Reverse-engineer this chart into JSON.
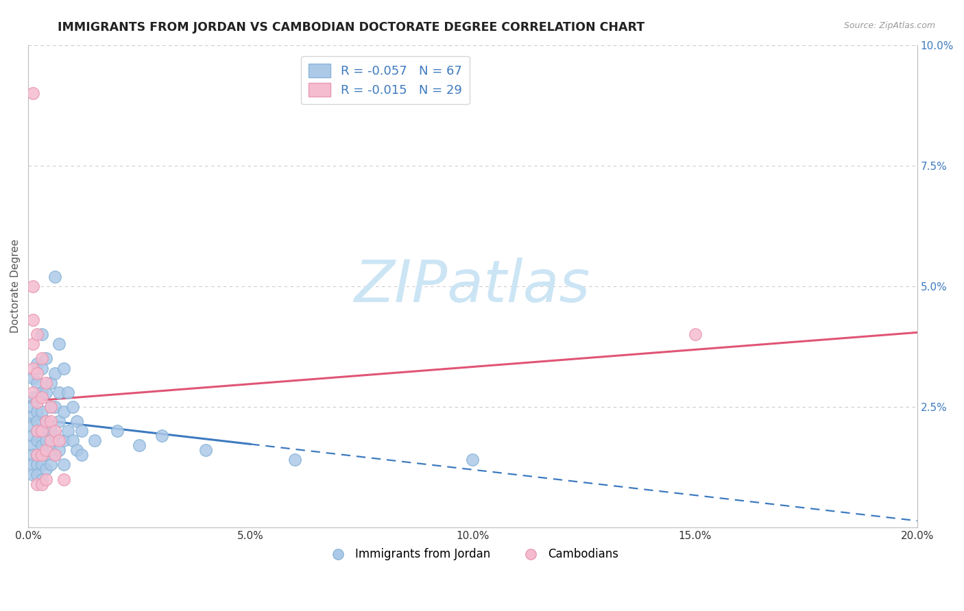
{
  "title": "IMMIGRANTS FROM JORDAN VS CAMBODIAN DOCTORATE DEGREE CORRELATION CHART",
  "source_text": "Source: ZipAtlas.com",
  "ylabel": "Doctorate Degree",
  "xlim": [
    0.0,
    0.2
  ],
  "ylim": [
    0.0,
    0.1
  ],
  "xticks": [
    0.0,
    0.05,
    0.1,
    0.15,
    0.2
  ],
  "xtick_labels": [
    "0.0%",
    "5.0%",
    "10.0%",
    "15.0%",
    "20.0%"
  ],
  "yticks_right": [
    0.025,
    0.05,
    0.075,
    0.1
  ],
  "ytick_labels_right": [
    "2.5%",
    "5.0%",
    "7.5%",
    "10.0%"
  ],
  "blue_R": -0.057,
  "blue_N": 67,
  "pink_R": -0.015,
  "pink_N": 29,
  "blue_color": "#adc9e8",
  "pink_color": "#f5bcd0",
  "blue_edge": "#89b4d8",
  "pink_edge": "#e899b0",
  "trend_blue_color": "#3d7abf",
  "trend_pink_color": "#e05575",
  "background_color": "#ffffff",
  "grid_color": "#cccccc",
  "title_fontsize": 12.5,
  "watermark_text": "ZIPatlas",
  "watermark_color": "#cce5f5",
  "legend_label_blue": "Immigrants from Jordan",
  "legend_label_pink": "Cambodians",
  "blue_scatter": [
    [
      0.001,
      0.031
    ],
    [
      0.001,
      0.027
    ],
    [
      0.001,
      0.025
    ],
    [
      0.001,
      0.023
    ],
    [
      0.001,
      0.021
    ],
    [
      0.001,
      0.019
    ],
    [
      0.001,
      0.017
    ],
    [
      0.001,
      0.015
    ],
    [
      0.001,
      0.013
    ],
    [
      0.001,
      0.011
    ],
    [
      0.002,
      0.034
    ],
    [
      0.002,
      0.03
    ],
    [
      0.002,
      0.027
    ],
    [
      0.002,
      0.024
    ],
    [
      0.002,
      0.022
    ],
    [
      0.002,
      0.02
    ],
    [
      0.002,
      0.018
    ],
    [
      0.002,
      0.015
    ],
    [
      0.002,
      0.013
    ],
    [
      0.002,
      0.011
    ],
    [
      0.003,
      0.04
    ],
    [
      0.003,
      0.033
    ],
    [
      0.003,
      0.028
    ],
    [
      0.003,
      0.024
    ],
    [
      0.003,
      0.02
    ],
    [
      0.003,
      0.017
    ],
    [
      0.003,
      0.013
    ],
    [
      0.003,
      0.01
    ],
    [
      0.004,
      0.035
    ],
    [
      0.004,
      0.028
    ],
    [
      0.004,
      0.022
    ],
    [
      0.004,
      0.018
    ],
    [
      0.004,
      0.015
    ],
    [
      0.004,
      0.012
    ],
    [
      0.005,
      0.03
    ],
    [
      0.005,
      0.025
    ],
    [
      0.005,
      0.02
    ],
    [
      0.005,
      0.016
    ],
    [
      0.005,
      0.013
    ],
    [
      0.006,
      0.052
    ],
    [
      0.006,
      0.032
    ],
    [
      0.006,
      0.025
    ],
    [
      0.006,
      0.019
    ],
    [
      0.006,
      0.015
    ],
    [
      0.007,
      0.038
    ],
    [
      0.007,
      0.028
    ],
    [
      0.007,
      0.022
    ],
    [
      0.007,
      0.016
    ],
    [
      0.008,
      0.033
    ],
    [
      0.008,
      0.024
    ],
    [
      0.008,
      0.018
    ],
    [
      0.008,
      0.013
    ],
    [
      0.009,
      0.028
    ],
    [
      0.009,
      0.02
    ],
    [
      0.01,
      0.025
    ],
    [
      0.01,
      0.018
    ],
    [
      0.011,
      0.022
    ],
    [
      0.011,
      0.016
    ],
    [
      0.012,
      0.02
    ],
    [
      0.012,
      0.015
    ],
    [
      0.015,
      0.018
    ],
    [
      0.02,
      0.02
    ],
    [
      0.025,
      0.017
    ],
    [
      0.03,
      0.019
    ],
    [
      0.04,
      0.016
    ],
    [
      0.06,
      0.014
    ],
    [
      0.1,
      0.014
    ]
  ],
  "pink_scatter": [
    [
      0.001,
      0.09
    ],
    [
      0.001,
      0.05
    ],
    [
      0.001,
      0.043
    ],
    [
      0.001,
      0.038
    ],
    [
      0.001,
      0.033
    ],
    [
      0.001,
      0.028
    ],
    [
      0.002,
      0.04
    ],
    [
      0.002,
      0.032
    ],
    [
      0.002,
      0.026
    ],
    [
      0.002,
      0.02
    ],
    [
      0.002,
      0.015
    ],
    [
      0.002,
      0.009
    ],
    [
      0.003,
      0.035
    ],
    [
      0.003,
      0.027
    ],
    [
      0.003,
      0.02
    ],
    [
      0.003,
      0.015
    ],
    [
      0.003,
      0.009
    ],
    [
      0.004,
      0.03
    ],
    [
      0.004,
      0.022
    ],
    [
      0.004,
      0.016
    ],
    [
      0.004,
      0.01
    ],
    [
      0.005,
      0.025
    ],
    [
      0.005,
      0.018
    ],
    [
      0.005,
      0.022
    ],
    [
      0.006,
      0.02
    ],
    [
      0.006,
      0.015
    ],
    [
      0.007,
      0.018
    ],
    [
      0.15,
      0.04
    ],
    [
      0.008,
      0.01
    ]
  ],
  "trend_blue_solid_end": 0.05,
  "trend_dashed_color": "#3d7abf"
}
